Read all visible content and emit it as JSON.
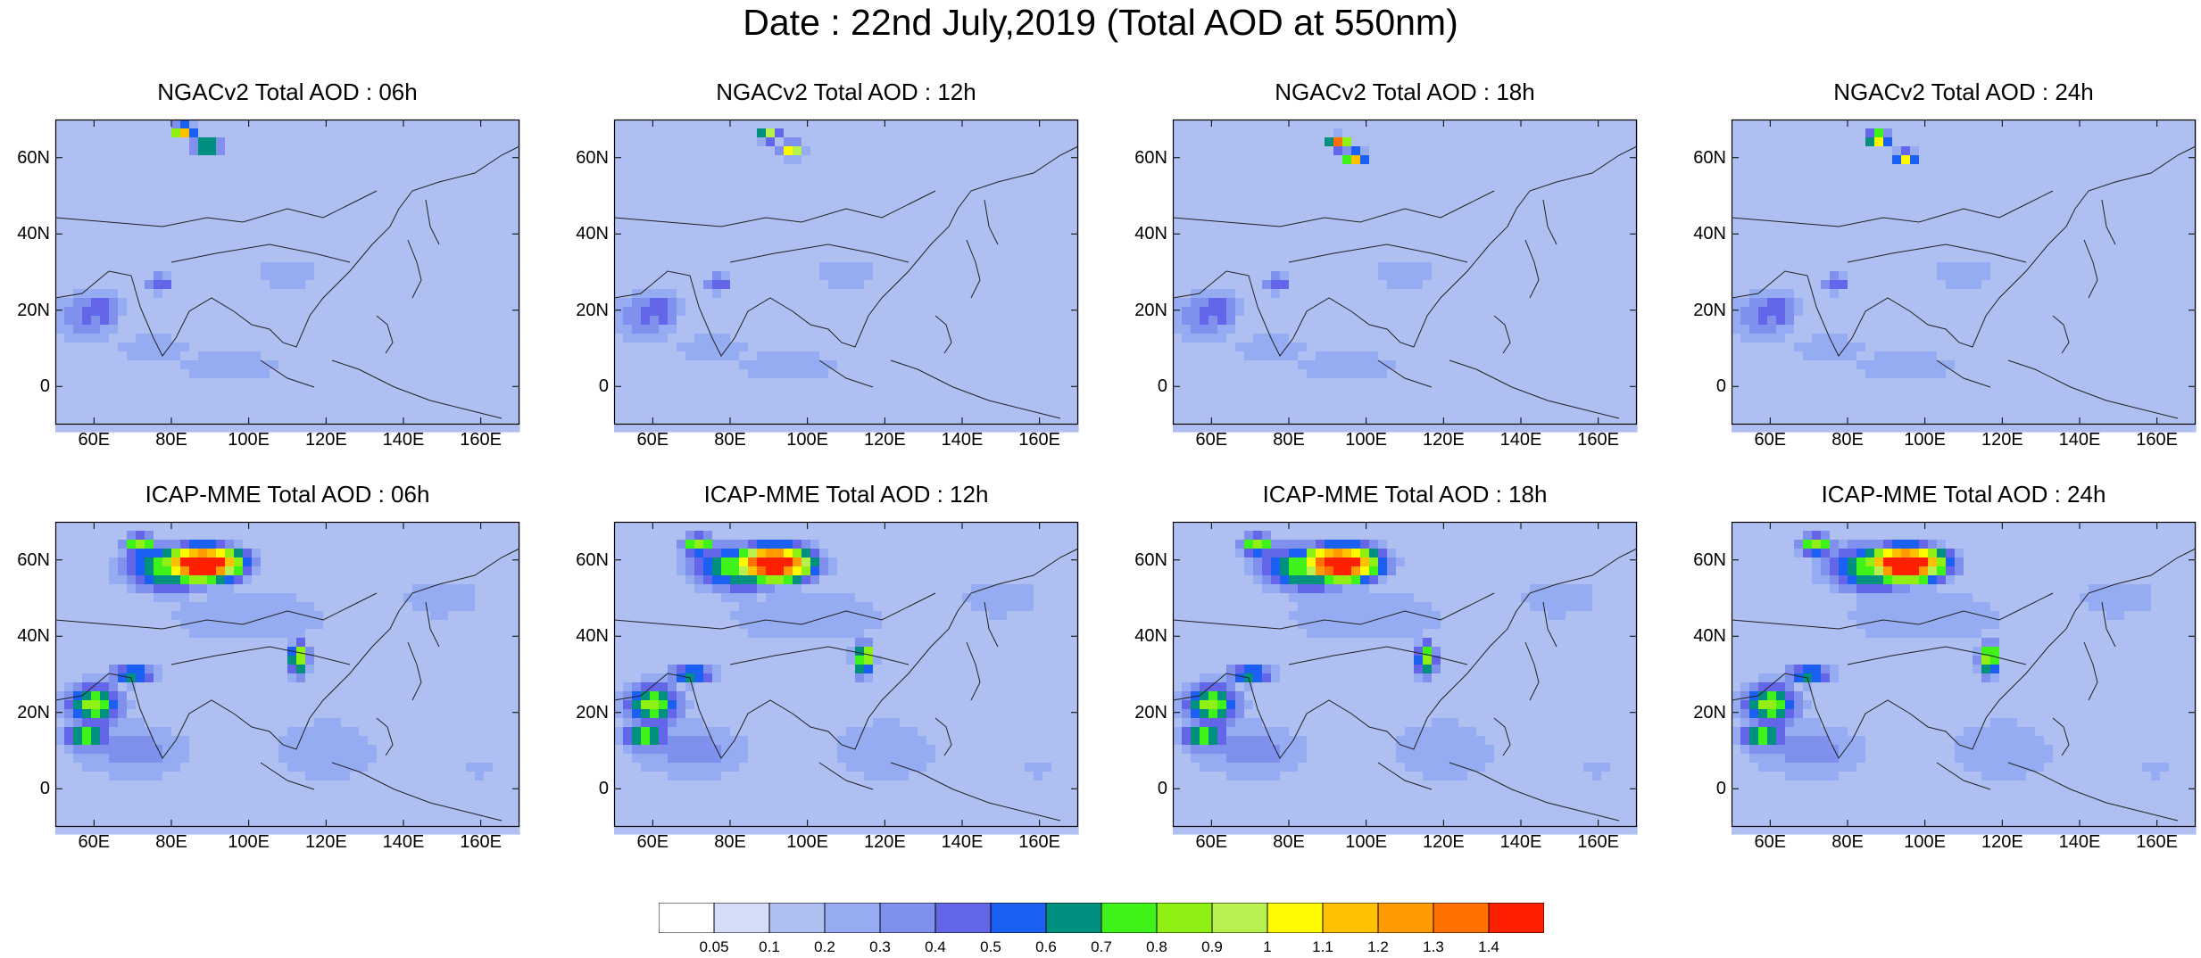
{
  "title": "Date : 22nd July,2019 (Total AOD at 550nm)",
  "lat_ticks": [
    "60N",
    "40N",
    "20N",
    "0"
  ],
  "lon_ticks": [
    "60E",
    "80E",
    "100E",
    "120E",
    "140E",
    "160E"
  ],
  "panels": [
    {
      "title": "NGACv2 Total AOD : 06h"
    },
    {
      "title": "NGACv2 Total AOD : 12h"
    },
    {
      "title": "NGACv2 Total AOD : 18h"
    },
    {
      "title": "NGACv2 Total AOD : 24h"
    },
    {
      "title": "ICAP-MME Total AOD : 06h"
    },
    {
      "title": "ICAP-MME Total AOD : 12h"
    },
    {
      "title": "ICAP-MME Total AOD : 18h"
    },
    {
      "title": "ICAP-MME Total AOD : 24h"
    }
  ],
  "colorbar": {
    "labels": [
      "0.05",
      "0.1",
      "0.2",
      "0.3",
      "0.4",
      "0.5",
      "0.6",
      "0.7",
      "0.8",
      "0.9",
      "1",
      "1.1",
      "1.2",
      "1.3",
      "1.4"
    ],
    "colors": [
      "#ffffff",
      "#d4dcf8",
      "#b0bff2",
      "#96acf2",
      "#7f91ec",
      "#6366e8",
      "#1b60f2",
      "#009080",
      "#3ef21a",
      "#90f014",
      "#b8f050",
      "#fffa00",
      "#ffc000",
      "#ff9a00",
      "#ff7000",
      "#ff2000"
    ]
  },
  "map": {
    "lon_range": [
      50,
      170
    ],
    "lat_range": [
      -10,
      70
    ],
    "lon_values": [
      60,
      80,
      100,
      120,
      140,
      160
    ],
    "lat_values": [
      60,
      40,
      20,
      0
    ]
  }
}
